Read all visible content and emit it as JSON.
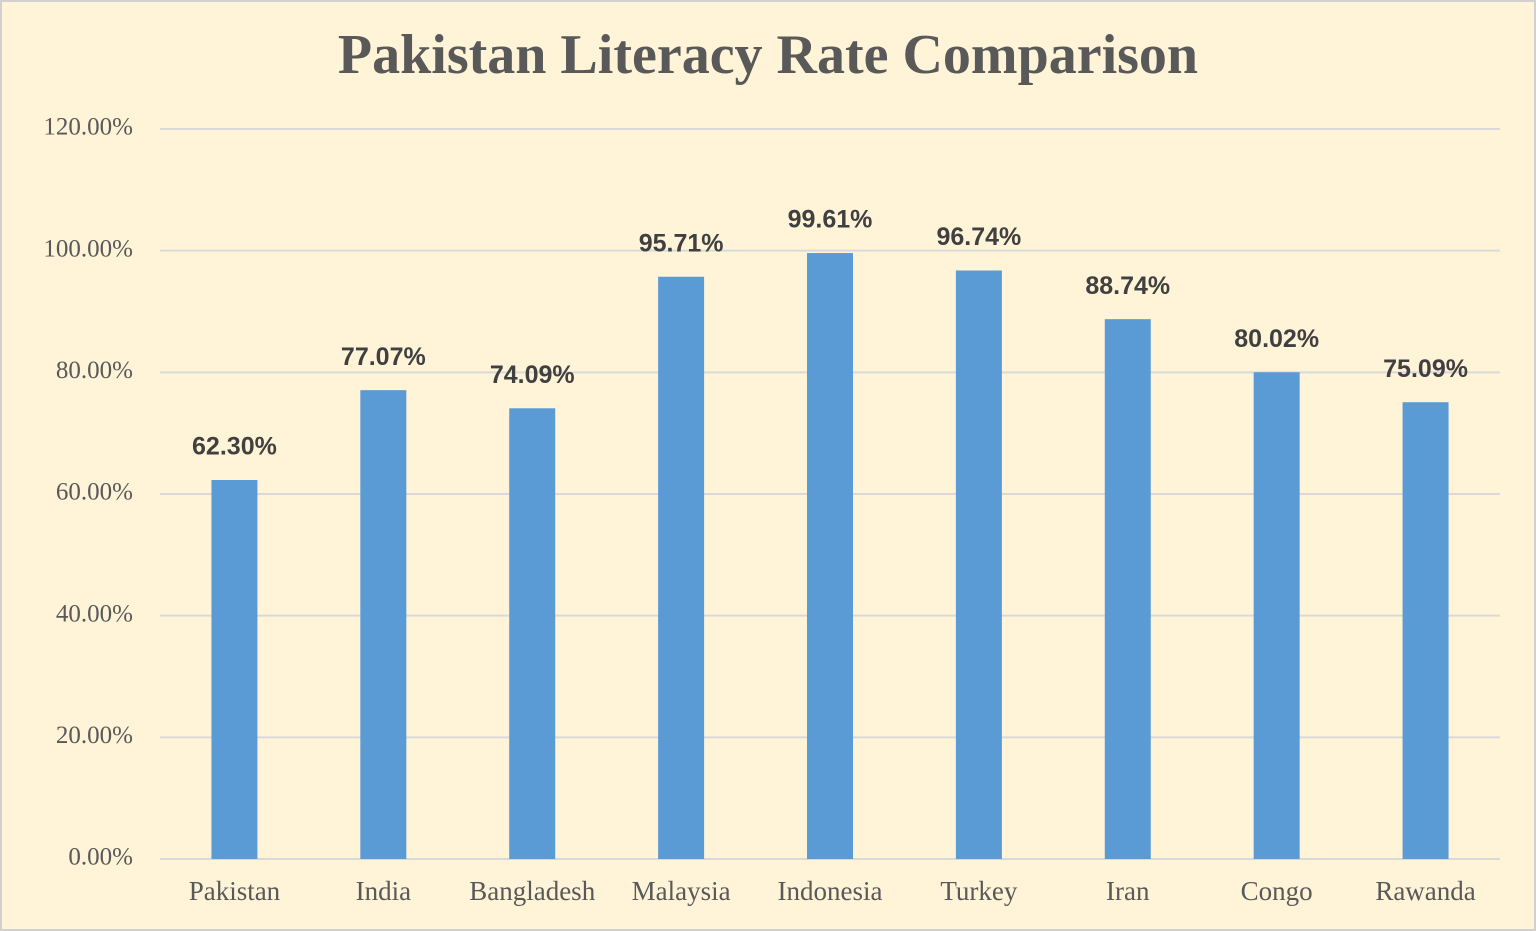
{
  "chart_data": {
    "type": "bar",
    "title": "Pakistan Literacy Rate Comparison",
    "categories": [
      "Pakistan",
      "India",
      "Bangladesh",
      "Malaysia",
      "Indonesia",
      "Turkey",
      "Iran",
      "Congo",
      "Rawanda"
    ],
    "values": [
      62.3,
      77.07,
      74.09,
      95.71,
      99.61,
      96.74,
      88.74,
      80.02,
      75.09
    ],
    "value_labels": [
      "62.30%",
      "77.07%",
      "74.09%",
      "95.71%",
      "99.61%",
      "96.74%",
      "88.74%",
      "80.02%",
      "75.09%"
    ],
    "color": "#5b9bd5",
    "ylim": [
      0,
      120
    ],
    "yticks": [
      {
        "value": 0,
        "label": "0.00%"
      },
      {
        "value": 20,
        "label": "20.00%"
      },
      {
        "value": 40,
        "label": "40.00%"
      },
      {
        "value": 60,
        "label": "60.00%"
      },
      {
        "value": 80,
        "label": "80.00%"
      },
      {
        "value": 100,
        "label": "100.00%"
      },
      {
        "value": 120,
        "label": "120.00%"
      }
    ],
    "grid": true
  }
}
